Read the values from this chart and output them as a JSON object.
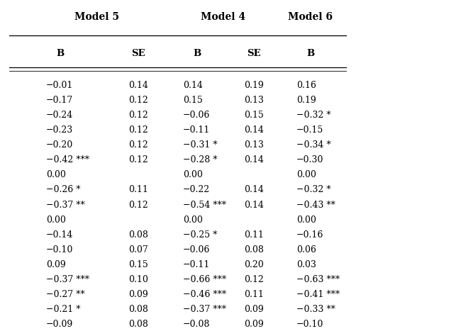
{
  "title_row": [
    "Model 5",
    "Model 4",
    "Model 6"
  ],
  "header_row": [
    "B",
    "SE",
    "B",
    "SE",
    "B"
  ],
  "rows": [
    [
      "−0.01",
      "0.14",
      "0.14",
      "0.19",
      "0.16"
    ],
    [
      "−0.17",
      "0.12",
      "0.15",
      "0.13",
      "0.19"
    ],
    [
      "−0.24",
      "0.12",
      "−0.06",
      "0.15",
      "−0.32 *"
    ],
    [
      "−0.23",
      "0.12",
      "−0.11",
      "0.14",
      "−0.15"
    ],
    [
      "−0.20",
      "0.12",
      "−0.31 *",
      "0.13",
      "−0.34 *"
    ],
    [
      "−0.42 ***",
      "0.12",
      "−0.28 *",
      "0.14",
      "−0.30"
    ],
    [
      "0.00",
      "",
      "0.00",
      "",
      "0.00"
    ],
    [
      "−0.26 *",
      "0.11",
      "−0.22",
      "0.14",
      "−0.32 *"
    ],
    [
      "−0.37 **",
      "0.12",
      "−0.54 ***",
      "0.14",
      "−0.43 **"
    ],
    [
      "0.00",
      "",
      "0.00",
      "",
      "0.00"
    ],
    [
      "−0.14",
      "0.08",
      "−0.25 *",
      "0.11",
      "−0.16"
    ],
    [
      "−0.10",
      "0.07",
      "−0.06",
      "0.08",
      "0.06"
    ],
    [
      "0.09",
      "0.15",
      "−0.11",
      "0.20",
      "0.03"
    ],
    [
      "−0.37 ***",
      "0.10",
      "−0.66 ***",
      "0.12",
      "−0.63 ***"
    ],
    [
      "−0.27 **",
      "0.09",
      "−0.46 ***",
      "0.11",
      "−0.41 ***"
    ],
    [
      "−0.21 *",
      "0.08",
      "−0.37 ***",
      "0.09",
      "−0.33 **"
    ],
    [
      "−0.09",
      "0.08",
      "−0.08",
      "0.09",
      "−0.10"
    ]
  ],
  "bg_color": "#ffffff",
  "text_color": "#000000",
  "font_size": 9.0,
  "header_font_size": 9.5,
  "title_font_size": 10.0,
  "fig_width": 6.5,
  "fig_height": 4.74,
  "dpi": 100
}
